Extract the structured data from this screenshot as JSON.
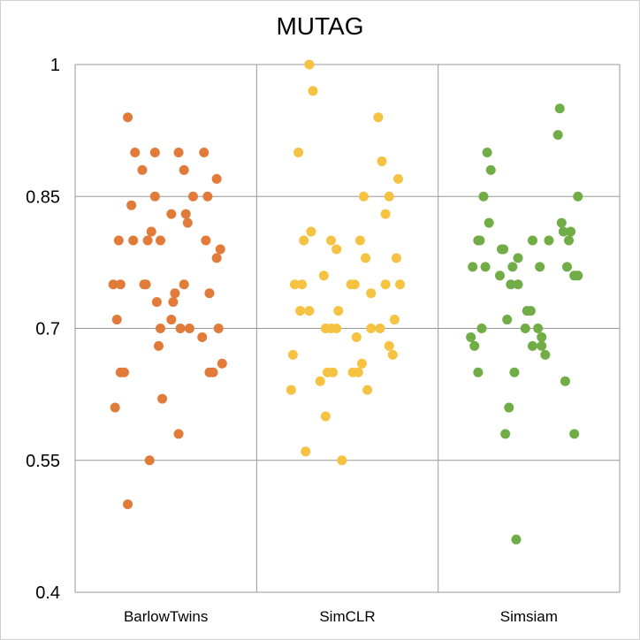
{
  "chart_data": {
    "type": "scatter",
    "title": "MUTAG",
    "xlabel": "",
    "ylabel": "",
    "ylim": [
      0.4,
      1.0
    ],
    "yticks": [
      0.4,
      0.55,
      0.7,
      0.85,
      1.0
    ],
    "ytick_labels": [
      "0.4",
      "0.55",
      "0.7",
      "0.85",
      "1"
    ],
    "grid": true,
    "legend": "none",
    "categories": [
      "BarlowTwins",
      "SimCLR",
      "Simsiam"
    ],
    "series": [
      {
        "category": "BarlowTwins",
        "color": "#E07B39",
        "points": [
          {
            "j": 0.29,
            "y": 0.94
          },
          {
            "j": 0.33,
            "y": 0.9
          },
          {
            "j": 0.44,
            "y": 0.9
          },
          {
            "j": 0.57,
            "y": 0.9
          },
          {
            "j": 0.71,
            "y": 0.9
          },
          {
            "j": 0.37,
            "y": 0.88
          },
          {
            "j": 0.6,
            "y": 0.88
          },
          {
            "j": 0.78,
            "y": 0.87
          },
          {
            "j": 0.44,
            "y": 0.85
          },
          {
            "j": 0.65,
            "y": 0.85
          },
          {
            "j": 0.73,
            "y": 0.85
          },
          {
            "j": 0.31,
            "y": 0.84
          },
          {
            "j": 0.53,
            "y": 0.83
          },
          {
            "j": 0.61,
            "y": 0.83
          },
          {
            "j": 0.62,
            "y": 0.82
          },
          {
            "j": 0.42,
            "y": 0.81
          },
          {
            "j": 0.24,
            "y": 0.8
          },
          {
            "j": 0.32,
            "y": 0.8
          },
          {
            "j": 0.4,
            "y": 0.8
          },
          {
            "j": 0.47,
            "y": 0.8
          },
          {
            "j": 0.72,
            "y": 0.8
          },
          {
            "j": 0.8,
            "y": 0.79
          },
          {
            "j": 0.78,
            "y": 0.78
          },
          {
            "j": 0.21,
            "y": 0.75
          },
          {
            "j": 0.25,
            "y": 0.75
          },
          {
            "j": 0.38,
            "y": 0.75
          },
          {
            "j": 0.39,
            "y": 0.75
          },
          {
            "j": 0.6,
            "y": 0.75
          },
          {
            "j": 0.55,
            "y": 0.74
          },
          {
            "j": 0.74,
            "y": 0.74
          },
          {
            "j": 0.45,
            "y": 0.73
          },
          {
            "j": 0.54,
            "y": 0.73
          },
          {
            "j": 0.23,
            "y": 0.71
          },
          {
            "j": 0.53,
            "y": 0.71
          },
          {
            "j": 0.47,
            "y": 0.7
          },
          {
            "j": 0.58,
            "y": 0.7
          },
          {
            "j": 0.63,
            "y": 0.7
          },
          {
            "j": 0.79,
            "y": 0.7
          },
          {
            "j": 0.7,
            "y": 0.69
          },
          {
            "j": 0.46,
            "y": 0.68
          },
          {
            "j": 0.81,
            "y": 0.66
          },
          {
            "j": 0.25,
            "y": 0.65
          },
          {
            "j": 0.27,
            "y": 0.65
          },
          {
            "j": 0.74,
            "y": 0.65
          },
          {
            "j": 0.76,
            "y": 0.65
          },
          {
            "j": 0.48,
            "y": 0.62
          },
          {
            "j": 0.22,
            "y": 0.61
          },
          {
            "j": 0.57,
            "y": 0.58
          },
          {
            "j": 0.41,
            "y": 0.55
          },
          {
            "j": 0.29,
            "y": 0.5
          }
        ]
      },
      {
        "category": "SimCLR",
        "color": "#F5C242",
        "points": [
          {
            "j": 0.29,
            "y": 1.0
          },
          {
            "j": 0.31,
            "y": 0.97
          },
          {
            "j": 0.67,
            "y": 0.94
          },
          {
            "j": 0.23,
            "y": 0.9
          },
          {
            "j": 0.69,
            "y": 0.89
          },
          {
            "j": 0.78,
            "y": 0.87
          },
          {
            "j": 0.59,
            "y": 0.85
          },
          {
            "j": 0.73,
            "y": 0.85
          },
          {
            "j": 0.71,
            "y": 0.83
          },
          {
            "j": 0.3,
            "y": 0.81
          },
          {
            "j": 0.26,
            "y": 0.8
          },
          {
            "j": 0.41,
            "y": 0.8
          },
          {
            "j": 0.57,
            "y": 0.8
          },
          {
            "j": 0.44,
            "y": 0.79
          },
          {
            "j": 0.6,
            "y": 0.78
          },
          {
            "j": 0.77,
            "y": 0.78
          },
          {
            "j": 0.37,
            "y": 0.76
          },
          {
            "j": 0.21,
            "y": 0.75
          },
          {
            "j": 0.25,
            "y": 0.75
          },
          {
            "j": 0.52,
            "y": 0.75
          },
          {
            "j": 0.54,
            "y": 0.75
          },
          {
            "j": 0.71,
            "y": 0.75
          },
          {
            "j": 0.79,
            "y": 0.75
          },
          {
            "j": 0.63,
            "y": 0.74
          },
          {
            "j": 0.24,
            "y": 0.72
          },
          {
            "j": 0.29,
            "y": 0.72
          },
          {
            "j": 0.45,
            "y": 0.72
          },
          {
            "j": 0.76,
            "y": 0.71
          },
          {
            "j": 0.38,
            "y": 0.7
          },
          {
            "j": 0.41,
            "y": 0.7
          },
          {
            "j": 0.44,
            "y": 0.7
          },
          {
            "j": 0.63,
            "y": 0.7
          },
          {
            "j": 0.68,
            "y": 0.7
          },
          {
            "j": 0.55,
            "y": 0.69
          },
          {
            "j": 0.73,
            "y": 0.68
          },
          {
            "j": 0.2,
            "y": 0.67
          },
          {
            "j": 0.75,
            "y": 0.67
          },
          {
            "j": 0.58,
            "y": 0.66
          },
          {
            "j": 0.39,
            "y": 0.65
          },
          {
            "j": 0.42,
            "y": 0.65
          },
          {
            "j": 0.53,
            "y": 0.65
          },
          {
            "j": 0.56,
            "y": 0.65
          },
          {
            "j": 0.35,
            "y": 0.64
          },
          {
            "j": 0.19,
            "y": 0.63
          },
          {
            "j": 0.61,
            "y": 0.63
          },
          {
            "j": 0.38,
            "y": 0.6
          },
          {
            "j": 0.27,
            "y": 0.56
          },
          {
            "j": 0.47,
            "y": 0.55
          }
        ]
      },
      {
        "category": "Simsiam",
        "color": "#70AD47",
        "points": [
          {
            "j": 0.67,
            "y": 0.95
          },
          {
            "j": 0.66,
            "y": 0.92
          },
          {
            "j": 0.27,
            "y": 0.9
          },
          {
            "j": 0.29,
            "y": 0.88
          },
          {
            "j": 0.25,
            "y": 0.85
          },
          {
            "j": 0.77,
            "y": 0.85
          },
          {
            "j": 0.28,
            "y": 0.82
          },
          {
            "j": 0.68,
            "y": 0.82
          },
          {
            "j": 0.69,
            "y": 0.81
          },
          {
            "j": 0.73,
            "y": 0.81
          },
          {
            "j": 0.22,
            "y": 0.8
          },
          {
            "j": 0.23,
            "y": 0.8
          },
          {
            "j": 0.52,
            "y": 0.8
          },
          {
            "j": 0.61,
            "y": 0.8
          },
          {
            "j": 0.72,
            "y": 0.8
          },
          {
            "j": 0.35,
            "y": 0.79
          },
          {
            "j": 0.36,
            "y": 0.79
          },
          {
            "j": 0.44,
            "y": 0.78
          },
          {
            "j": 0.19,
            "y": 0.77
          },
          {
            "j": 0.26,
            "y": 0.77
          },
          {
            "j": 0.41,
            "y": 0.77
          },
          {
            "j": 0.56,
            "y": 0.77
          },
          {
            "j": 0.71,
            "y": 0.77
          },
          {
            "j": 0.34,
            "y": 0.76
          },
          {
            "j": 0.75,
            "y": 0.76
          },
          {
            "j": 0.77,
            "y": 0.76
          },
          {
            "j": 0.4,
            "y": 0.75
          },
          {
            "j": 0.44,
            "y": 0.75
          },
          {
            "j": 0.49,
            "y": 0.72
          },
          {
            "j": 0.51,
            "y": 0.72
          },
          {
            "j": 0.38,
            "y": 0.71
          },
          {
            "j": 0.24,
            "y": 0.7
          },
          {
            "j": 0.48,
            "y": 0.7
          },
          {
            "j": 0.55,
            "y": 0.7
          },
          {
            "j": 0.18,
            "y": 0.69
          },
          {
            "j": 0.57,
            "y": 0.69
          },
          {
            "j": 0.2,
            "y": 0.68
          },
          {
            "j": 0.52,
            "y": 0.68
          },
          {
            "j": 0.57,
            "y": 0.68
          },
          {
            "j": 0.59,
            "y": 0.67
          },
          {
            "j": 0.22,
            "y": 0.65
          },
          {
            "j": 0.42,
            "y": 0.65
          },
          {
            "j": 0.7,
            "y": 0.64
          },
          {
            "j": 0.39,
            "y": 0.61
          },
          {
            "j": 0.37,
            "y": 0.58
          },
          {
            "j": 0.75,
            "y": 0.58
          },
          {
            "j": 0.43,
            "y": 0.46
          }
        ]
      }
    ]
  }
}
